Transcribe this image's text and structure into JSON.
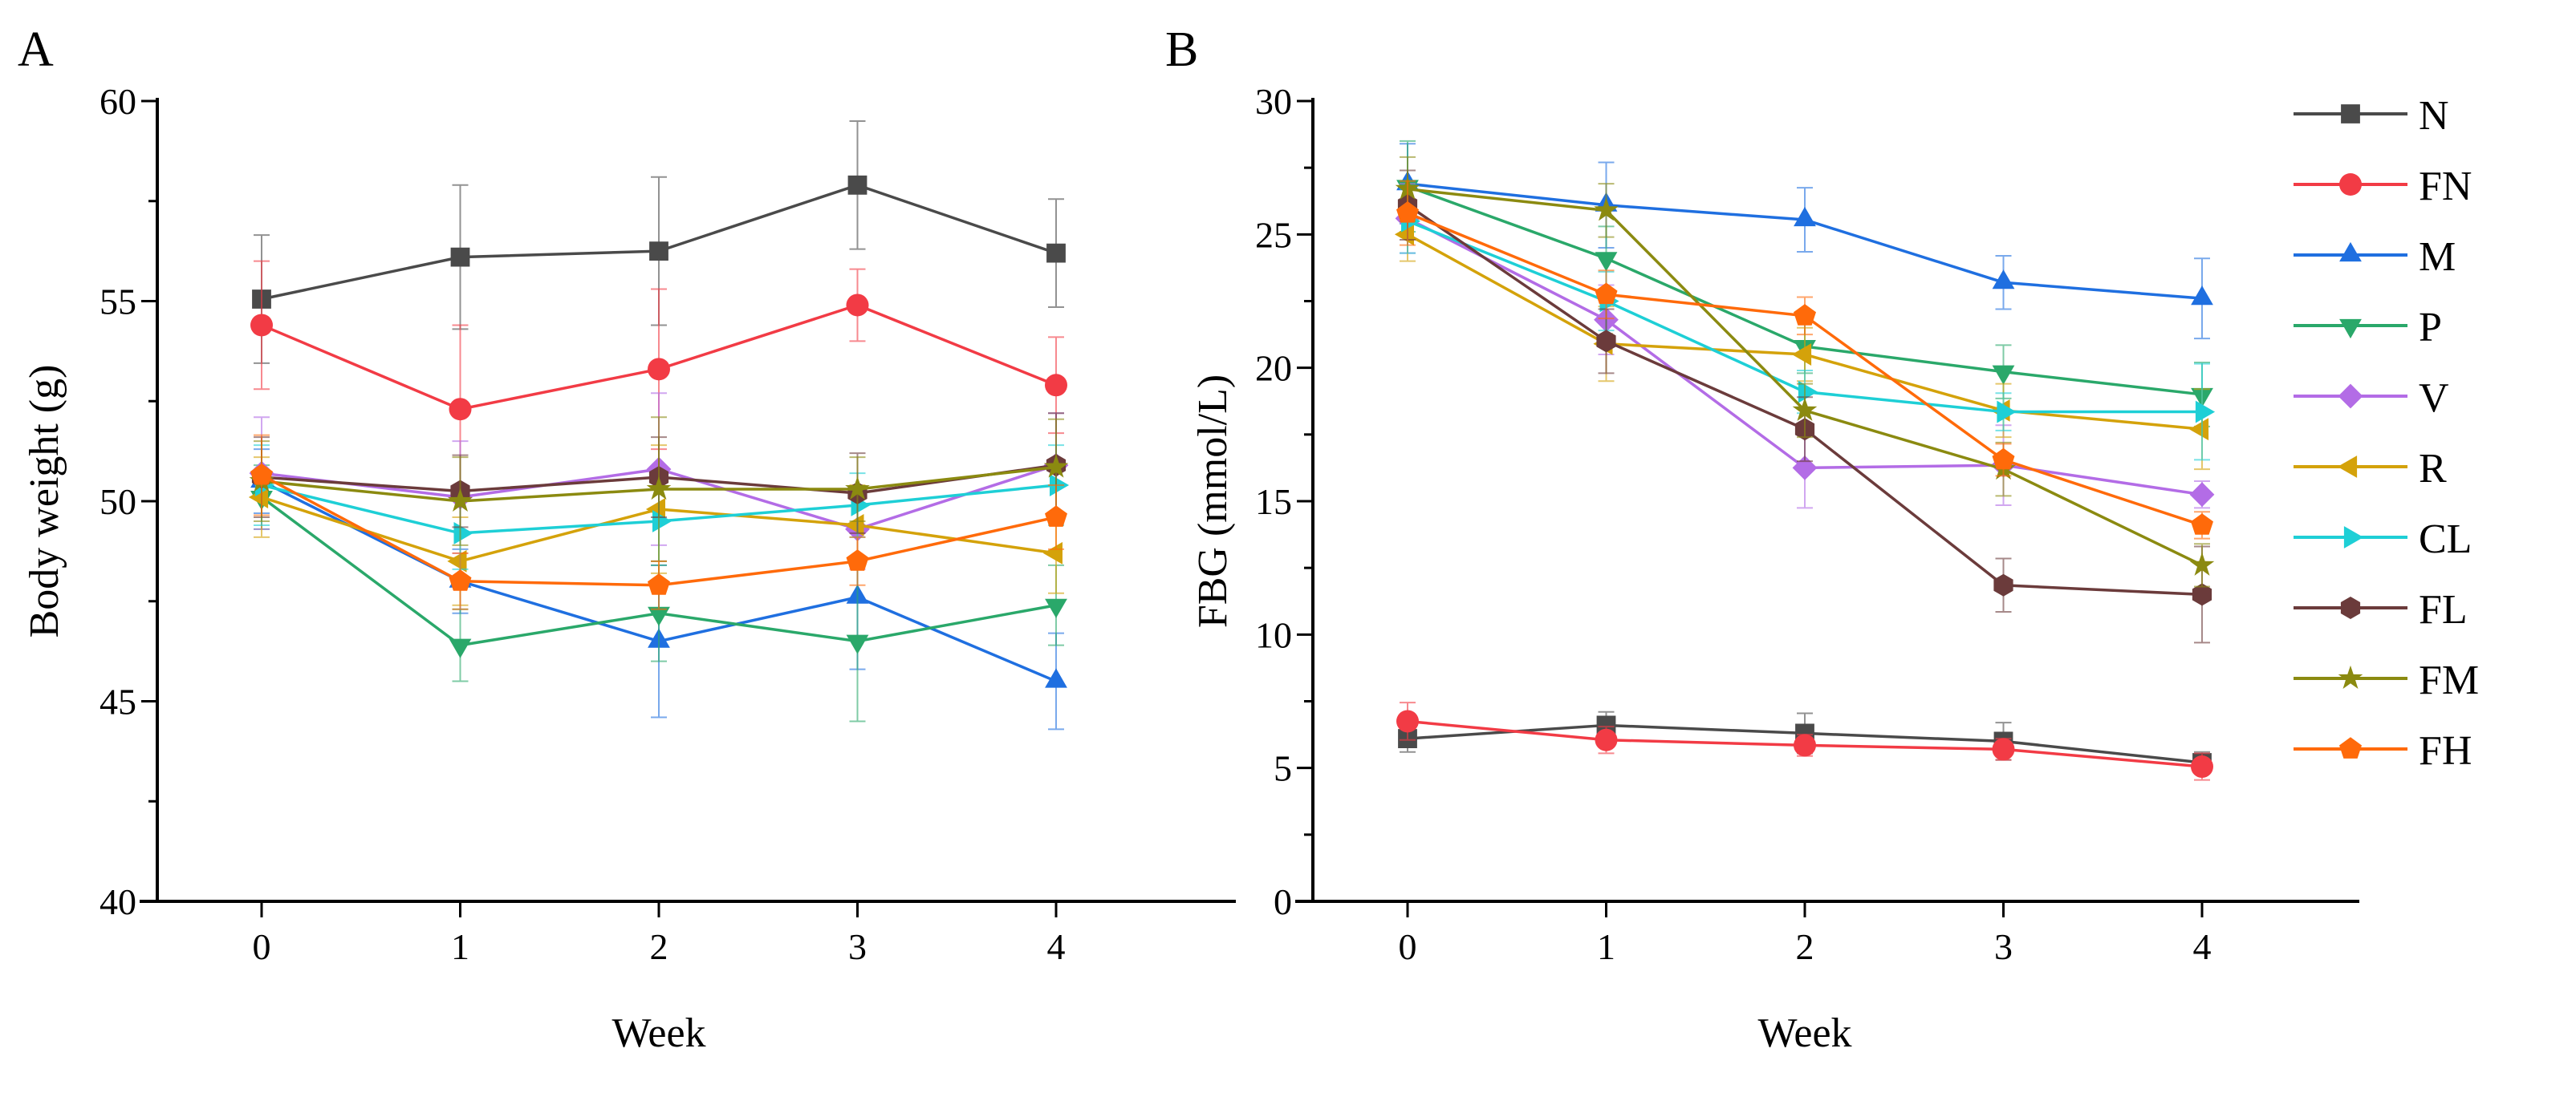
{
  "chart_data": [
    {
      "type": "line",
      "panel_label": "A",
      "xlabel": "Week",
      "ylabel": "Body weight (g)",
      "x": [
        0,
        1,
        2,
        3,
        4
      ],
      "xticks": [
        "0",
        "1",
        "2",
        "3",
        "4"
      ],
      "ylim": [
        40,
        60
      ],
      "yticks": [
        "40",
        "45",
        "50",
        "55",
        "60"
      ],
      "grid": false,
      "series": [
        {
          "name": "N",
          "color": "#4a4a4a",
          "marker": "square",
          "values": [
            55.05,
            56.1,
            56.25,
            57.9,
            56.2
          ],
          "errors": [
            1.6,
            1.8,
            1.85,
            1.6,
            1.35
          ]
        },
        {
          "name": "FN",
          "color": "#f23b45",
          "marker": "circle",
          "values": [
            54.4,
            52.3,
            53.3,
            54.9,
            52.9
          ],
          "errors": [
            1.6,
            2.1,
            2.0,
            0.9,
            1.2
          ]
        },
        {
          "name": "M",
          "color": "#1f6fe0",
          "marker": "triangle-up",
          "values": [
            50.5,
            48.0,
            46.5,
            47.6,
            45.5
          ],
          "errors": [
            0.8,
            0.8,
            1.9,
            1.8,
            1.2
          ]
        },
        {
          "name": "P",
          "color": "#2aa86a",
          "marker": "triangle-down",
          "values": [
            50.1,
            46.4,
            47.2,
            46.5,
            47.4
          ],
          "errors": [
            0.8,
            0.9,
            1.2,
            2.0,
            1.0
          ]
        },
        {
          "name": "V",
          "color": "#b36ce6",
          "marker": "diamond",
          "values": [
            50.7,
            50.1,
            50.8,
            49.3,
            50.9
          ],
          "errors": [
            1.4,
            1.4,
            1.9,
            1.0,
            1.3
          ]
        },
        {
          "name": "R",
          "color": "#d4a20a",
          "marker": "triangle-left",
          "values": [
            50.1,
            48.5,
            49.8,
            49.4,
            48.7
          ],
          "errors": [
            1.0,
            1.1,
            1.6,
            1.0,
            1.0
          ]
        },
        {
          "name": "CL",
          "color": "#1ecfd6",
          "marker": "triangle-right",
          "values": [
            50.4,
            49.2,
            49.5,
            49.9,
            50.4
          ],
          "errors": [
            1.0,
            0.9,
            1.0,
            0.8,
            1.0
          ]
        },
        {
          "name": "FL",
          "color": "#6b3b3b",
          "marker": "hexagon",
          "values": [
            50.6,
            50.25,
            50.6,
            50.2,
            50.9
          ],
          "errors": [
            1.0,
            0.9,
            1.0,
            1.0,
            1.3
          ]
        },
        {
          "name": "FM",
          "color": "#8b8a10",
          "marker": "star",
          "values": [
            50.5,
            50.0,
            50.3,
            50.3,
            50.85
          ],
          "errors": [
            1.0,
            1.1,
            1.8,
            0.8,
            1.2
          ]
        },
        {
          "name": "FH",
          "color": "#ff6a0a",
          "marker": "pentagon",
          "values": [
            50.65,
            48.0,
            47.9,
            48.5,
            49.6
          ],
          "errors": [
            1.0,
            0.7,
            0.6,
            0.6,
            0.8
          ]
        }
      ]
    },
    {
      "type": "line",
      "panel_label": "B",
      "xlabel": "Week",
      "ylabel": "FBG (mmol/L)",
      "x": [
        0,
        1,
        2,
        3,
        4
      ],
      "xticks": [
        "0",
        "1",
        "2",
        "3",
        "4"
      ],
      "ylim": [
        0,
        30
      ],
      "yticks": [
        "0",
        "5",
        "10",
        "15",
        "20",
        "25",
        "30"
      ],
      "grid": false,
      "legend": "right",
      "series": [
        {
          "name": "N",
          "color": "#4a4a4a",
          "marker": "square",
          "values": [
            6.1,
            6.6,
            6.3,
            6.0,
            5.2
          ],
          "errors": [
            0.5,
            0.5,
            0.75,
            0.7,
            0.4
          ]
        },
        {
          "name": "FN",
          "color": "#f23b45",
          "marker": "circle",
          "values": [
            6.75,
            6.05,
            5.85,
            5.7,
            5.05
          ],
          "errors": [
            0.7,
            0.5,
            0.4,
            0.4,
            0.5
          ]
        },
        {
          "name": "M",
          "color": "#1f6fe0",
          "marker": "triangle-up",
          "values": [
            26.9,
            26.1,
            25.55,
            23.2,
            22.6
          ],
          "errors": [
            1.5,
            1.6,
            1.2,
            1.0,
            1.5
          ]
        },
        {
          "name": "P",
          "color": "#2aa86a",
          "marker": "triangle-down",
          "values": [
            26.8,
            24.1,
            20.8,
            19.85,
            19.0
          ],
          "errors": [
            1.7,
            1.2,
            1.0,
            1.0,
            1.2
          ]
        },
        {
          "name": "V",
          "color": "#b36ce6",
          "marker": "diamond",
          "values": [
            25.6,
            21.8,
            16.25,
            16.35,
            15.25
          ],
          "errors": [
            1.3,
            1.3,
            1.5,
            1.5,
            0.5
          ]
        },
        {
          "name": "R",
          "color": "#d4a20a",
          "marker": "triangle-left",
          "values": [
            25.0,
            20.9,
            20.5,
            18.4,
            17.7
          ],
          "errors": [
            1.0,
            1.4,
            1.0,
            1.0,
            1.5
          ]
        },
        {
          "name": "CL",
          "color": "#1ecfd6",
          "marker": "triangle-right",
          "values": [
            25.5,
            22.5,
            19.1,
            18.35,
            18.35
          ],
          "errors": [
            1.2,
            1.1,
            0.8,
            0.7,
            1.8
          ]
        },
        {
          "name": "FL",
          "color": "#6b3b3b",
          "marker": "hexagon",
          "values": [
            26.1,
            21.0,
            17.7,
            11.85,
            11.5
          ],
          "errors": [
            1.3,
            1.2,
            1.2,
            1.0,
            1.8
          ]
        },
        {
          "name": "FM",
          "color": "#8b8a10",
          "marker": "star",
          "values": [
            26.7,
            25.9,
            18.4,
            16.2,
            12.6
          ],
          "errors": [
            1.2,
            1.0,
            1.0,
            1.0,
            0.8
          ]
        },
        {
          "name": "FH",
          "color": "#ff6a0a",
          "marker": "pentagon",
          "values": [
            25.8,
            22.75,
            21.95,
            16.55,
            14.1
          ],
          "errors": [
            1.2,
            0.9,
            0.7,
            0.6,
            0.5
          ]
        }
      ]
    }
  ]
}
